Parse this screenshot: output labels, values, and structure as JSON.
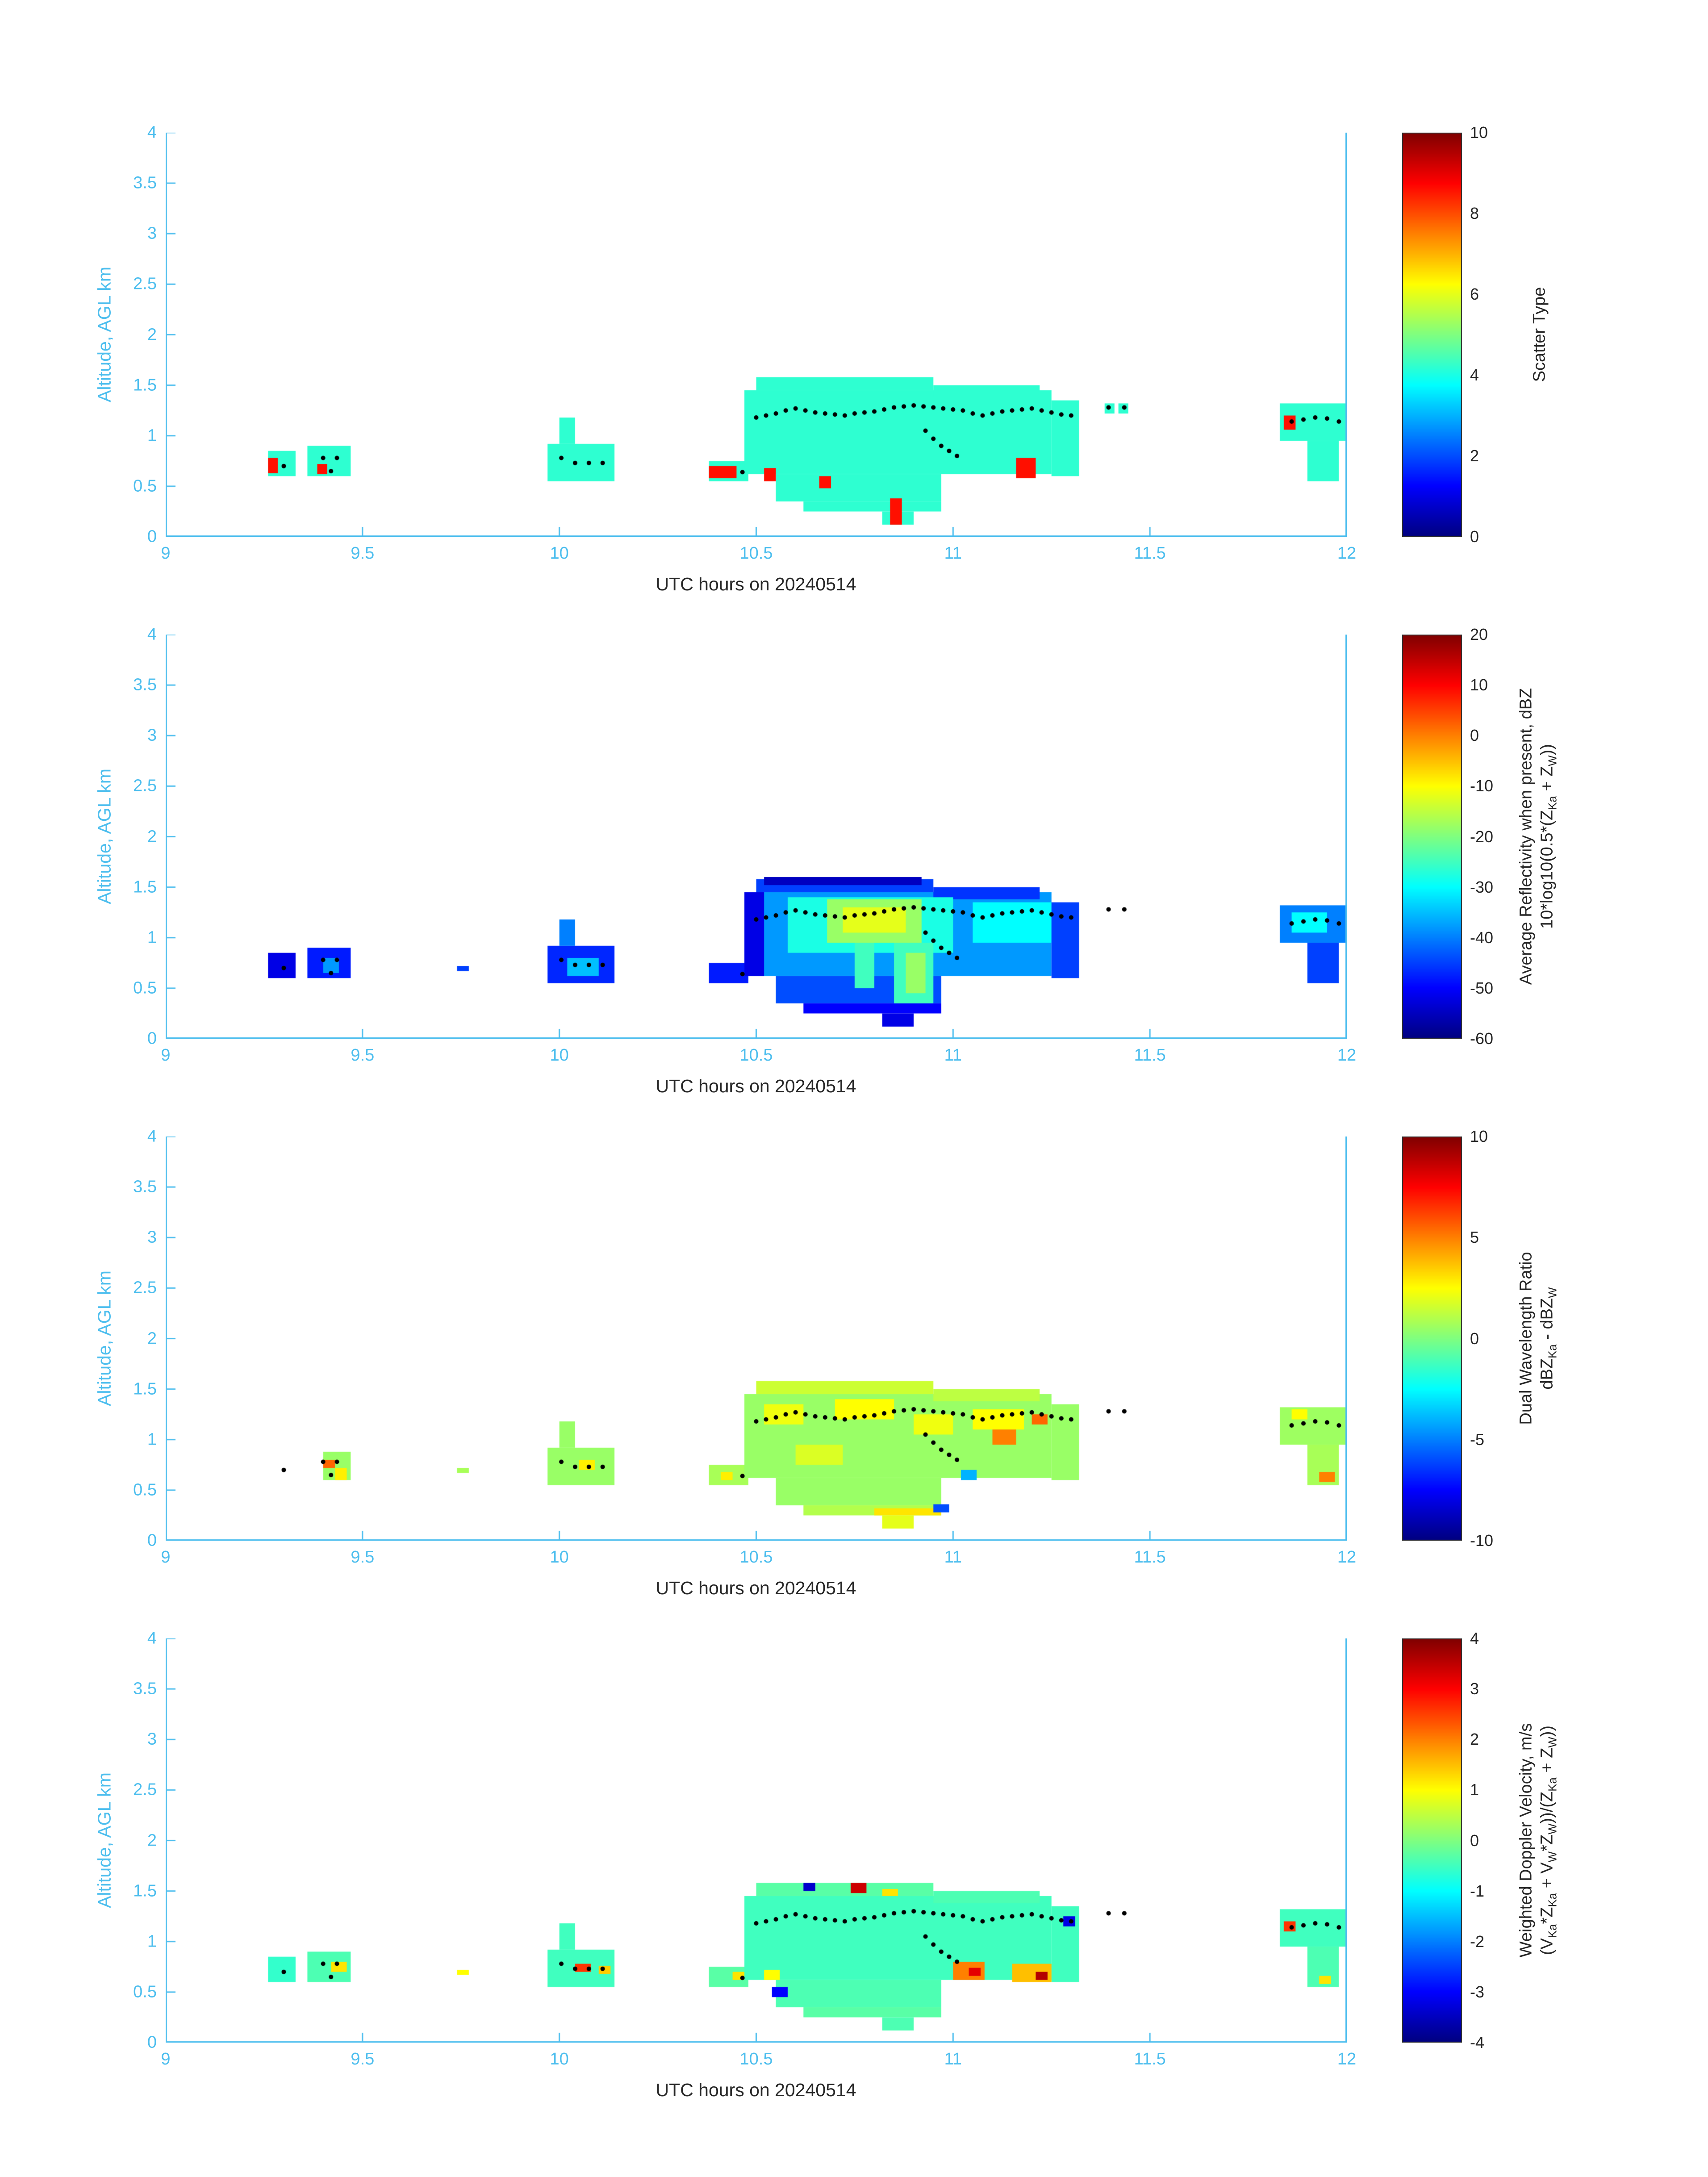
{
  "page": {
    "background": "#ffffff",
    "axis_color": "#4DBEEE",
    "text_color": "#262626",
    "colormap": "jet"
  },
  "dots_shared": [
    [
      9.3,
      0.7
    ],
    [
      9.4,
      0.78
    ],
    [
      9.435,
      0.78
    ],
    [
      9.42,
      0.65
    ],
    [
      10.005,
      0.78
    ],
    [
      10.04,
      0.73
    ],
    [
      10.075,
      0.73
    ],
    [
      10.11,
      0.73
    ],
    [
      10.465,
      0.64
    ],
    [
      10.5,
      1.18
    ],
    [
      10.525,
      1.2
    ],
    [
      10.55,
      1.22
    ],
    [
      10.575,
      1.25
    ],
    [
      10.6,
      1.27
    ],
    [
      10.625,
      1.25
    ],
    [
      10.65,
      1.23
    ],
    [
      10.675,
      1.22
    ],
    [
      10.7,
      1.21
    ],
    [
      10.725,
      1.2
    ],
    [
      10.75,
      1.22
    ],
    [
      10.775,
      1.23
    ],
    [
      10.8,
      1.24
    ],
    [
      10.825,
      1.26
    ],
    [
      10.85,
      1.28
    ],
    [
      10.875,
      1.29
    ],
    [
      10.9,
      1.3
    ],
    [
      10.925,
      1.29
    ],
    [
      10.95,
      1.28
    ],
    [
      10.975,
      1.27
    ],
    [
      11.0,
      1.26
    ],
    [
      11.025,
      1.25
    ],
    [
      11.05,
      1.22
    ],
    [
      11.075,
      1.2
    ],
    [
      11.1,
      1.22
    ],
    [
      11.125,
      1.24
    ],
    [
      11.15,
      1.25
    ],
    [
      11.175,
      1.26
    ],
    [
      11.2,
      1.27
    ],
    [
      11.225,
      1.25
    ],
    [
      11.25,
      1.23
    ],
    [
      11.275,
      1.21
    ],
    [
      11.3,
      1.2
    ],
    [
      10.93,
      1.05
    ],
    [
      10.95,
      0.97
    ],
    [
      10.97,
      0.9
    ],
    [
      10.99,
      0.85
    ],
    [
      11.01,
      0.8
    ],
    [
      11.395,
      1.28
    ],
    [
      11.435,
      1.28
    ],
    [
      11.86,
      1.14
    ],
    [
      11.89,
      1.16
    ],
    [
      11.92,
      1.18
    ],
    [
      11.95,
      1.17
    ],
    [
      11.98,
      1.14
    ]
  ],
  "chart_data": [
    {
      "type": "heatmap",
      "xlabel": "UTC hours on 20240514",
      "ylabel": "Altitude, AGL km",
      "xlim": [
        9,
        12
      ],
      "ylim": [
        0,
        4
      ],
      "xticks": [
        9,
        9.5,
        10,
        10.5,
        11,
        11.5,
        12
      ],
      "xtick_labels": [
        "9",
        "9.5",
        "10",
        "10.5",
        "11",
        "11.5",
        "12"
      ],
      "yticks": [
        0,
        0.5,
        1,
        1.5,
        2,
        2.5,
        3,
        3.5,
        4
      ],
      "ytick_labels": [
        "0",
        "0.5",
        "1",
        "1.5",
        "2",
        "2.5",
        "3",
        "3.5",
        "4"
      ],
      "colorbar": {
        "min": 0,
        "max": 10,
        "ticks": [
          0,
          2,
          4,
          6,
          8,
          10
        ],
        "label_lines": [
          [
            [
              "t",
              "Scatter Type"
            ]
          ]
        ]
      },
      "dots": "shared",
      "patches": [
        [
          9.26,
          9.33,
          0.6,
          0.85,
          4.2
        ],
        [
          9.26,
          9.285,
          0.63,
          0.78,
          8.6
        ],
        [
          9.36,
          9.47,
          0.6,
          0.9,
          4.2
        ],
        [
          9.385,
          9.41,
          0.62,
          0.72,
          8.6
        ],
        [
          9.97,
          10.14,
          0.55,
          0.92,
          4.2
        ],
        [
          10.0,
          10.04,
          0.92,
          1.18,
          4.2
        ],
        [
          10.38,
          10.48,
          0.55,
          0.75,
          4.2
        ],
        [
          10.38,
          10.45,
          0.58,
          0.7,
          8.6
        ],
        [
          10.47,
          11.25,
          0.62,
          1.45,
          4.2
        ],
        [
          10.5,
          10.95,
          1.45,
          1.58,
          4.2
        ],
        [
          10.95,
          11.22,
          1.38,
          1.5,
          4.2
        ],
        [
          10.55,
          10.97,
          0.35,
          0.62,
          4.2
        ],
        [
          10.62,
          10.97,
          0.25,
          0.35,
          4.2
        ],
        [
          10.82,
          10.9,
          0.12,
          0.25,
          4.2
        ],
        [
          11.25,
          11.32,
          0.6,
          1.35,
          4.2
        ],
        [
          10.52,
          10.55,
          0.55,
          0.68,
          8.6
        ],
        [
          10.66,
          10.69,
          0.48,
          0.6,
          8.6
        ],
        [
          10.84,
          10.87,
          0.12,
          0.38,
          8.6
        ],
        [
          11.16,
          11.21,
          0.58,
          0.78,
          8.6
        ],
        [
          11.385,
          11.41,
          1.22,
          1.32,
          4.2
        ],
        [
          11.42,
          11.445,
          1.22,
          1.32,
          4.2
        ],
        [
          11.83,
          12.0,
          0.95,
          1.32,
          4.2
        ],
        [
          11.9,
          11.98,
          0.55,
          0.95,
          4.2
        ],
        [
          11.84,
          11.87,
          1.06,
          1.2,
          8.6
        ]
      ]
    },
    {
      "type": "heatmap",
      "xlabel": "UTC hours on 20240514",
      "ylabel": "Altitude, AGL km",
      "xlim": [
        9,
        12
      ],
      "ylim": [
        0,
        4
      ],
      "xticks": [
        9,
        9.5,
        10,
        10.5,
        11,
        11.5,
        12
      ],
      "xtick_labels": [
        "9",
        "9.5",
        "10",
        "10.5",
        "11",
        "11.5",
        "12"
      ],
      "yticks": [
        0,
        0.5,
        1,
        1.5,
        2,
        2.5,
        3,
        3.5,
        4
      ],
      "ytick_labels": [
        "0",
        "0.5",
        "1",
        "1.5",
        "2",
        "2.5",
        "3",
        "3.5",
        "4"
      ],
      "colorbar": {
        "min": -60,
        "max": 20,
        "ticks": [
          -60,
          -50,
          -40,
          -30,
          -20,
          -10,
          0,
          10,
          20
        ],
        "label_lines": [
          [
            [
              "t",
              "Average Reflectivity when present, dBZ"
            ]
          ],
          [
            [
              "t",
              "10*log10(0.5*(Z"
            ],
            [
              "sub",
              "Ka"
            ],
            [
              "t",
              " + Z"
            ],
            [
              "sub",
              "W"
            ],
            [
              "t",
              "))"
            ]
          ]
        ]
      },
      "dots": "shared",
      "patches": [
        [
          9.26,
          9.33,
          0.6,
          0.85,
          -52
        ],
        [
          9.36,
          9.47,
          0.6,
          0.9,
          -48
        ],
        [
          9.4,
          9.44,
          0.65,
          0.8,
          -38
        ],
        [
          9.74,
          9.77,
          0.67,
          0.72,
          -45
        ],
        [
          9.97,
          10.14,
          0.55,
          0.92,
          -47
        ],
        [
          10.0,
          10.04,
          0.92,
          1.18,
          -40
        ],
        [
          10.02,
          10.1,
          0.62,
          0.8,
          -35
        ],
        [
          10.38,
          10.48,
          0.55,
          0.75,
          -48
        ],
        [
          10.47,
          11.25,
          0.62,
          1.45,
          -38
        ],
        [
          10.47,
          10.52,
          0.62,
          1.45,
          -52
        ],
        [
          10.5,
          10.95,
          1.45,
          1.58,
          -45
        ],
        [
          10.52,
          10.92,
          1.52,
          1.6,
          -55
        ],
        [
          10.95,
          11.22,
          1.38,
          1.5,
          -46
        ],
        [
          10.55,
          10.97,
          0.35,
          0.62,
          -44
        ],
        [
          10.62,
          10.97,
          0.25,
          0.35,
          -50
        ],
        [
          10.82,
          10.9,
          0.12,
          0.25,
          -52
        ],
        [
          10.58,
          11.0,
          0.85,
          1.4,
          -28
        ],
        [
          10.68,
          10.92,
          0.95,
          1.38,
          -18
        ],
        [
          10.72,
          10.88,
          1.05,
          1.3,
          -12
        ],
        [
          10.75,
          10.8,
          0.5,
          0.95,
          -25
        ],
        [
          10.85,
          10.95,
          0.35,
          0.95,
          -25
        ],
        [
          10.88,
          10.93,
          0.45,
          0.85,
          -18
        ],
        [
          11.05,
          11.25,
          0.95,
          1.35,
          -30
        ],
        [
          11.25,
          11.32,
          0.6,
          1.35,
          -45
        ],
        [
          11.83,
          12.0,
          0.95,
          1.32,
          -40
        ],
        [
          11.9,
          11.98,
          0.55,
          0.95,
          -45
        ],
        [
          11.86,
          11.95,
          1.05,
          1.25,
          -30
        ]
      ]
    },
    {
      "type": "heatmap",
      "xlabel": "UTC hours on 20240514",
      "ylabel": "Altitude, AGL km",
      "xlim": [
        9,
        12
      ],
      "ylim": [
        0,
        4
      ],
      "xticks": [
        9,
        9.5,
        10,
        10.5,
        11,
        11.5,
        12
      ],
      "xtick_labels": [
        "9",
        "9.5",
        "10",
        "10.5",
        "11",
        "11.5",
        "12"
      ],
      "yticks": [
        0,
        0.5,
        1,
        1.5,
        2,
        2.5,
        3,
        3.5,
        4
      ],
      "ytick_labels": [
        "0",
        "0.5",
        "1",
        "1.5",
        "2",
        "2.5",
        "3",
        "3.5",
        "4"
      ],
      "colorbar": {
        "min": -10,
        "max": 10,
        "ticks": [
          -10,
          -5,
          0,
          5,
          10
        ],
        "label_lines": [
          [
            [
              "t",
              "Dual Wavelength Ratio"
            ]
          ],
          [
            [
              "t",
              "dBZ"
            ],
            [
              "sub",
              "Ka"
            ],
            [
              "t",
              " - dBZ"
            ],
            [
              "sub",
              "W"
            ]
          ]
        ]
      },
      "dots": "shared",
      "patches": [
        [
          9.4,
          9.47,
          0.6,
          0.88,
          0.5
        ],
        [
          9.4,
          9.43,
          0.72,
          0.8,
          5.5
        ],
        [
          9.43,
          9.46,
          0.6,
          0.72,
          2.8
        ],
        [
          9.74,
          9.77,
          0.67,
          0.72,
          0.8
        ],
        [
          9.97,
          10.14,
          0.55,
          0.92,
          0.5
        ],
        [
          10.0,
          10.04,
          0.92,
          1.18,
          0.5
        ],
        [
          10.05,
          10.09,
          0.7,
          0.8,
          2.8
        ],
        [
          10.38,
          10.48,
          0.55,
          0.75,
          0.8
        ],
        [
          10.41,
          10.44,
          0.6,
          0.68,
          2.8
        ],
        [
          10.47,
          11.25,
          0.62,
          1.45,
          0.5
        ],
        [
          10.5,
          10.95,
          1.45,
          1.58,
          1.5
        ],
        [
          10.95,
          11.22,
          1.38,
          1.5,
          1.2
        ],
        [
          10.55,
          10.97,
          0.35,
          0.62,
          0.5
        ],
        [
          10.62,
          10.97,
          0.25,
          0.35,
          1.0
        ],
        [
          10.8,
          10.97,
          0.25,
          0.32,
          3.0
        ],
        [
          10.82,
          10.9,
          0.12,
          0.25,
          2.0
        ],
        [
          11.25,
          11.32,
          0.6,
          1.35,
          0.5
        ],
        [
          10.52,
          10.62,
          1.15,
          1.35,
          2.2
        ],
        [
          10.7,
          10.85,
          1.2,
          1.4,
          2.5
        ],
        [
          10.9,
          11.0,
          1.05,
          1.25,
          2.2
        ],
        [
          11.05,
          11.18,
          1.1,
          1.3,
          2.5
        ],
        [
          10.6,
          10.72,
          0.75,
          0.95,
          1.8
        ],
        [
          11.1,
          11.16,
          0.95,
          1.1,
          5.0
        ],
        [
          11.2,
          11.24,
          1.15,
          1.25,
          5.5
        ],
        [
          10.95,
          10.99,
          0.28,
          0.36,
          -6
        ],
        [
          11.02,
          11.06,
          0.6,
          0.7,
          -4
        ],
        [
          11.83,
          12.0,
          0.95,
          1.32,
          0.6
        ],
        [
          11.9,
          11.98,
          0.55,
          0.95,
          0.8
        ],
        [
          11.93,
          11.97,
          0.58,
          0.68,
          5.0
        ],
        [
          11.86,
          11.9,
          1.2,
          1.3,
          2.5
        ]
      ]
    },
    {
      "type": "heatmap",
      "xlabel": "UTC hours on 20240514",
      "ylabel": "Altitude, AGL km",
      "xlim": [
        9,
        12
      ],
      "ylim": [
        0,
        4
      ],
      "xticks": [
        9,
        9.5,
        10,
        10.5,
        11,
        11.5,
        12
      ],
      "xtick_labels": [
        "9",
        "9.5",
        "10",
        "10.5",
        "11",
        "11.5",
        "12"
      ],
      "yticks": [
        0,
        0.5,
        1,
        1.5,
        2,
        2.5,
        3,
        3.5,
        4
      ],
      "ytick_labels": [
        "0",
        "0.5",
        "1",
        "1.5",
        "2",
        "2.5",
        "3",
        "3.5",
        "4"
      ],
      "colorbar": {
        "min": -4,
        "max": 4,
        "ticks": [
          -4,
          -3,
          -2,
          -1,
          0,
          1,
          2,
          3,
          4
        ],
        "label_lines": [
          [
            [
              "t",
              "Weighted Doppler Velocity, m/s"
            ]
          ],
          [
            [
              "t",
              "(V"
            ],
            [
              "sub",
              "Ka"
            ],
            [
              "t",
              "*Z"
            ],
            [
              "sub",
              "Ka"
            ],
            [
              "t",
              " + V"
            ],
            [
              "sub",
              "W"
            ],
            [
              "t",
              "*Z"
            ],
            [
              "sub",
              "W"
            ],
            [
              "t",
              "))/(Z"
            ],
            [
              "sub",
              "Ka"
            ],
            [
              "t",
              " + Z"
            ],
            [
              "sub",
              "W"
            ],
            [
              "t",
              "))"
            ]
          ]
        ]
      },
      "dots": "shared",
      "patches": [
        [
          9.26,
          9.33,
          0.6,
          0.85,
          -0.6
        ],
        [
          9.36,
          9.47,
          0.6,
          0.9,
          -0.4
        ],
        [
          9.42,
          9.46,
          0.7,
          0.8,
          1.2
        ],
        [
          9.74,
          9.77,
          0.67,
          0.72,
          1.0
        ],
        [
          9.97,
          10.14,
          0.55,
          0.92,
          -0.5
        ],
        [
          10.0,
          10.04,
          0.92,
          1.18,
          -0.5
        ],
        [
          10.04,
          10.08,
          0.7,
          0.78,
          2.6
        ],
        [
          10.1,
          10.13,
          0.68,
          0.76,
          1.4
        ],
        [
          10.38,
          10.48,
          0.55,
          0.75,
          -0.3
        ],
        [
          10.44,
          10.47,
          0.62,
          0.7,
          1.2
        ],
        [
          10.47,
          11.25,
          0.62,
          1.45,
          -0.5
        ],
        [
          10.5,
          10.95,
          1.45,
          1.58,
          -0.3
        ],
        [
          10.95,
          11.22,
          1.38,
          1.5,
          -0.4
        ],
        [
          10.55,
          10.97,
          0.35,
          0.62,
          -0.4
        ],
        [
          10.62,
          10.97,
          0.25,
          0.35,
          -0.3
        ],
        [
          10.82,
          10.9,
          0.12,
          0.25,
          -0.4
        ],
        [
          11.25,
          11.32,
          0.6,
          1.35,
          -0.5
        ],
        [
          10.74,
          10.78,
          1.48,
          1.58,
          3.4
        ],
        [
          10.62,
          10.65,
          1.5,
          1.58,
          -3.4
        ],
        [
          10.82,
          10.86,
          1.45,
          1.52,
          1.2
        ],
        [
          10.54,
          10.58,
          0.45,
          0.55,
          -3.0
        ],
        [
          10.52,
          10.56,
          0.62,
          0.72,
          1.0
        ],
        [
          11.0,
          11.08,
          0.62,
          0.8,
          2.0
        ],
        [
          11.04,
          11.07,
          0.66,
          0.74,
          3.2
        ],
        [
          11.15,
          11.25,
          0.6,
          0.78,
          1.5
        ],
        [
          11.21,
          11.24,
          0.62,
          0.7,
          3.6
        ],
        [
          11.28,
          11.31,
          1.15,
          1.25,
          -3.2
        ],
        [
          11.83,
          12.0,
          0.95,
          1.32,
          -0.5
        ],
        [
          11.9,
          11.98,
          0.55,
          0.95,
          -0.4
        ],
        [
          11.84,
          11.87,
          1.1,
          1.2,
          2.6
        ],
        [
          11.93,
          11.96,
          0.58,
          0.66,
          1.2
        ]
      ]
    }
  ]
}
